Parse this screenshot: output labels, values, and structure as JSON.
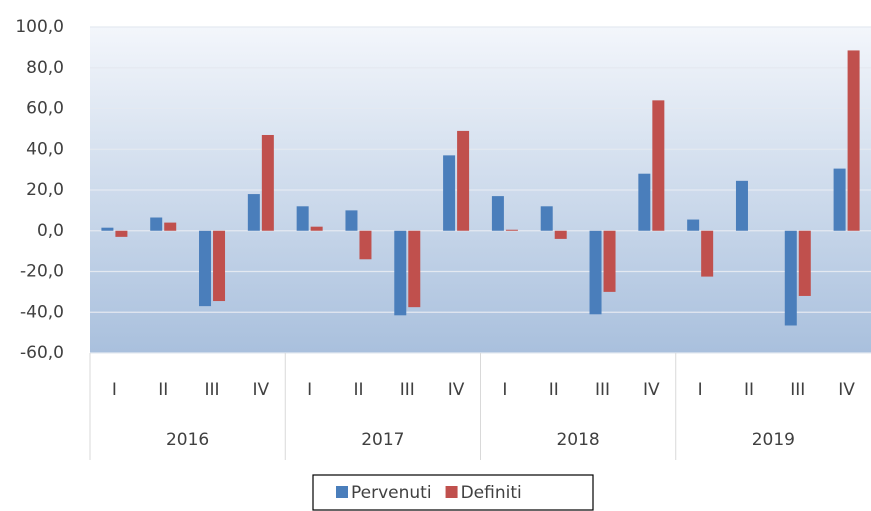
{
  "chart_data": {
    "type": "bar",
    "categories": [
      "I",
      "II",
      "III",
      "IV",
      "I",
      "II",
      "III",
      "IV",
      "I",
      "II",
      "III",
      "IV",
      "I",
      "II",
      "III",
      "IV"
    ],
    "category_groups": [
      "2016",
      "2017",
      "2018",
      "2019"
    ],
    "series": [
      {
        "name": "Pervenuti",
        "color": "#4a7ebb",
        "values": [
          1.5,
          6.5,
          -37,
          18,
          12,
          10,
          -41.5,
          37,
          17,
          12,
          -41,
          28,
          5.5,
          24.5,
          -46.5,
          30.5
        ]
      },
      {
        "name": "Definiti",
        "color": "#c0504d",
        "values": [
          -3,
          4,
          -34.5,
          47,
          2,
          -14,
          -37.5,
          49,
          0.5,
          -4,
          -30,
          64,
          -22.5,
          0,
          -32,
          88.5
        ]
      }
    ],
    "ylim": [
      -60,
      100
    ],
    "yticks": [
      {
        "value": -60,
        "label": "-60,0"
      },
      {
        "value": -40,
        "label": "-40,0"
      },
      {
        "value": -20,
        "label": "-20,0"
      },
      {
        "value": 0,
        "label": "0,0"
      },
      {
        "value": 20,
        "label": "20,0"
      },
      {
        "value": 40,
        "label": "40,0"
      },
      {
        "value": 60,
        "label": "60,0"
      },
      {
        "value": 80,
        "label": "80,0"
      },
      {
        "value": 100,
        "label": "100,0"
      }
    ],
    "grid": true,
    "legend": "bottom"
  }
}
